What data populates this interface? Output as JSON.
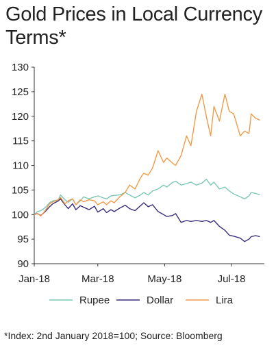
{
  "chart_data": {
    "type": "line",
    "title": "Gold Prices in Local Currency Terms*",
    "xlabel": "",
    "ylabel": "",
    "ylim": [
      90,
      130
    ],
    "yticks": [
      90,
      95,
      100,
      105,
      110,
      115,
      120,
      125,
      130
    ],
    "xlim": [
      "2018-01-02",
      "2018-07-31"
    ],
    "xticks": [
      {
        "label": "Jan-18",
        "date": "2018-01-02"
      },
      {
        "label": "Mar-18",
        "date": "2018-03-01"
      },
      {
        "label": "May-18",
        "date": "2018-05-01"
      },
      {
        "label": "Jul-18",
        "date": "2018-07-01"
      }
    ],
    "grid": false,
    "legend_position": "bottom",
    "series": [
      {
        "name": "Rupee",
        "color": "#7cc7b6",
        "points": [
          [
            "2018-01-02",
            100.0
          ],
          [
            "2018-01-05",
            100.6
          ],
          [
            "2018-01-08",
            100.8
          ],
          [
            "2018-01-12",
            101.4
          ],
          [
            "2018-01-16",
            102.4
          ],
          [
            "2018-01-19",
            102.8
          ],
          [
            "2018-01-24",
            103.0
          ],
          [
            "2018-01-26",
            104.0
          ],
          [
            "2018-01-30",
            103.0
          ],
          [
            "2018-02-02",
            102.5
          ],
          [
            "2018-02-06",
            103.2
          ],
          [
            "2018-02-09",
            102.0
          ],
          [
            "2018-02-13",
            102.8
          ],
          [
            "2018-02-16",
            103.6
          ],
          [
            "2018-02-21",
            103.2
          ],
          [
            "2018-02-26",
            103.6
          ],
          [
            "2018-03-01",
            103.8
          ],
          [
            "2018-03-06",
            103.4
          ],
          [
            "2018-03-09",
            103.2
          ],
          [
            "2018-03-13",
            103.8
          ],
          [
            "2018-03-16",
            103.9
          ],
          [
            "2018-03-21",
            104.0
          ],
          [
            "2018-03-26",
            104.5
          ],
          [
            "2018-03-30",
            104.0
          ],
          [
            "2018-04-04",
            103.4
          ],
          [
            "2018-04-09",
            104.0
          ],
          [
            "2018-04-12",
            104.5
          ],
          [
            "2018-04-16",
            104.0
          ],
          [
            "2018-04-20",
            104.8
          ],
          [
            "2018-04-25",
            105.2
          ],
          [
            "2018-04-30",
            106.0
          ],
          [
            "2018-05-03",
            105.6
          ],
          [
            "2018-05-08",
            106.5
          ],
          [
            "2018-05-11",
            106.8
          ],
          [
            "2018-05-16",
            106.0
          ],
          [
            "2018-05-21",
            106.3
          ],
          [
            "2018-05-25",
            106.6
          ],
          [
            "2018-05-30",
            106.0
          ],
          [
            "2018-06-04",
            106.4
          ],
          [
            "2018-06-08",
            107.2
          ],
          [
            "2018-06-12",
            106.0
          ],
          [
            "2018-06-15",
            106.6
          ],
          [
            "2018-06-20",
            105.2
          ],
          [
            "2018-06-25",
            105.6
          ],
          [
            "2018-06-29",
            104.8
          ],
          [
            "2018-07-03",
            104.2
          ],
          [
            "2018-07-09",
            103.6
          ],
          [
            "2018-07-13",
            103.2
          ],
          [
            "2018-07-17",
            103.8
          ],
          [
            "2018-07-19",
            104.5
          ],
          [
            "2018-07-23",
            104.3
          ],
          [
            "2018-07-27",
            104.0
          ]
        ]
      },
      {
        "name": "Dollar",
        "color": "#3b2c7a",
        "points": [
          [
            "2018-01-02",
            100.0
          ],
          [
            "2018-01-05",
            100.2
          ],
          [
            "2018-01-08",
            99.8
          ],
          [
            "2018-01-12",
            100.6
          ],
          [
            "2018-01-16",
            101.6
          ],
          [
            "2018-01-19",
            102.2
          ],
          [
            "2018-01-24",
            102.8
          ],
          [
            "2018-01-26",
            103.2
          ],
          [
            "2018-01-30",
            102.0
          ],
          [
            "2018-02-02",
            101.2
          ],
          [
            "2018-02-06",
            102.2
          ],
          [
            "2018-02-09",
            101.0
          ],
          [
            "2018-02-13",
            101.8
          ],
          [
            "2018-02-16",
            101.5
          ],
          [
            "2018-02-21",
            101.0
          ],
          [
            "2018-02-26",
            101.7
          ],
          [
            "2018-03-01",
            100.5
          ],
          [
            "2018-03-06",
            101.2
          ],
          [
            "2018-03-09",
            100.4
          ],
          [
            "2018-03-13",
            101.0
          ],
          [
            "2018-03-16",
            100.6
          ],
          [
            "2018-03-21",
            101.3
          ],
          [
            "2018-03-26",
            101.9
          ],
          [
            "2018-03-30",
            101.2
          ],
          [
            "2018-04-04",
            100.8
          ],
          [
            "2018-04-09",
            101.8
          ],
          [
            "2018-04-12",
            102.4
          ],
          [
            "2018-04-16",
            101.6
          ],
          [
            "2018-04-20",
            102.0
          ],
          [
            "2018-04-25",
            100.6
          ],
          [
            "2018-04-30",
            100.0
          ],
          [
            "2018-05-03",
            99.6
          ],
          [
            "2018-05-08",
            99.8
          ],
          [
            "2018-05-11",
            100.2
          ],
          [
            "2018-05-16",
            98.4
          ],
          [
            "2018-05-21",
            98.8
          ],
          [
            "2018-05-25",
            98.6
          ],
          [
            "2018-05-30",
            98.8
          ],
          [
            "2018-06-04",
            98.6
          ],
          [
            "2018-06-08",
            98.8
          ],
          [
            "2018-06-12",
            98.4
          ],
          [
            "2018-06-15",
            98.8
          ],
          [
            "2018-06-20",
            97.6
          ],
          [
            "2018-06-25",
            96.8
          ],
          [
            "2018-06-29",
            95.8
          ],
          [
            "2018-07-03",
            95.6
          ],
          [
            "2018-07-09",
            95.2
          ],
          [
            "2018-07-13",
            94.5
          ],
          [
            "2018-07-17",
            95.0
          ],
          [
            "2018-07-19",
            95.5
          ],
          [
            "2018-07-23",
            95.7
          ],
          [
            "2018-07-27",
            95.5
          ]
        ]
      },
      {
        "name": "Lira",
        "color": "#f19a46",
        "points": [
          [
            "2018-01-02",
            100.0
          ],
          [
            "2018-01-05",
            100.2
          ],
          [
            "2018-01-08",
            99.7
          ],
          [
            "2018-01-12",
            100.8
          ],
          [
            "2018-01-16",
            102.2
          ],
          [
            "2018-01-19",
            102.6
          ],
          [
            "2018-01-24",
            103.0
          ],
          [
            "2018-01-26",
            103.5
          ],
          [
            "2018-01-30",
            102.2
          ],
          [
            "2018-02-02",
            102.8
          ],
          [
            "2018-02-06",
            103.2
          ],
          [
            "2018-02-09",
            102.0
          ],
          [
            "2018-02-13",
            103.0
          ],
          [
            "2018-02-16",
            102.6
          ],
          [
            "2018-02-21",
            103.0
          ],
          [
            "2018-02-26",
            102.8
          ],
          [
            "2018-03-01",
            102.0
          ],
          [
            "2018-03-06",
            102.6
          ],
          [
            "2018-03-09",
            102.0
          ],
          [
            "2018-03-13",
            102.8
          ],
          [
            "2018-03-16",
            102.4
          ],
          [
            "2018-03-21",
            103.6
          ],
          [
            "2018-03-26",
            104.5
          ],
          [
            "2018-03-30",
            106.0
          ],
          [
            "2018-04-04",
            105.2
          ],
          [
            "2018-04-09",
            107.5
          ],
          [
            "2018-04-12",
            108.4
          ],
          [
            "2018-04-16",
            108.0
          ],
          [
            "2018-04-20",
            109.5
          ],
          [
            "2018-04-25",
            113.0
          ],
          [
            "2018-04-30",
            110.6
          ],
          [
            "2018-05-03",
            111.5
          ],
          [
            "2018-05-08",
            110.5
          ],
          [
            "2018-05-11",
            110.0
          ],
          [
            "2018-05-16",
            112.0
          ],
          [
            "2018-05-21",
            116.0
          ],
          [
            "2018-05-25",
            114.0
          ],
          [
            "2018-05-30",
            121.0
          ],
          [
            "2018-06-04",
            124.5
          ],
          [
            "2018-06-08",
            120.0
          ],
          [
            "2018-06-12",
            116.0
          ],
          [
            "2018-06-15",
            122.0
          ],
          [
            "2018-06-20",
            119.0
          ],
          [
            "2018-06-25",
            124.5
          ],
          [
            "2018-06-29",
            121.0
          ],
          [
            "2018-07-03",
            120.5
          ],
          [
            "2018-07-09",
            116.0
          ],
          [
            "2018-07-13",
            117.0
          ],
          [
            "2018-07-17",
            116.5
          ],
          [
            "2018-07-19",
            120.5
          ],
          [
            "2018-07-23",
            119.6
          ],
          [
            "2018-07-27",
            119.2
          ]
        ]
      }
    ]
  },
  "footnote": "*Index: 2nd January 2018=100; Source: Bloomberg"
}
